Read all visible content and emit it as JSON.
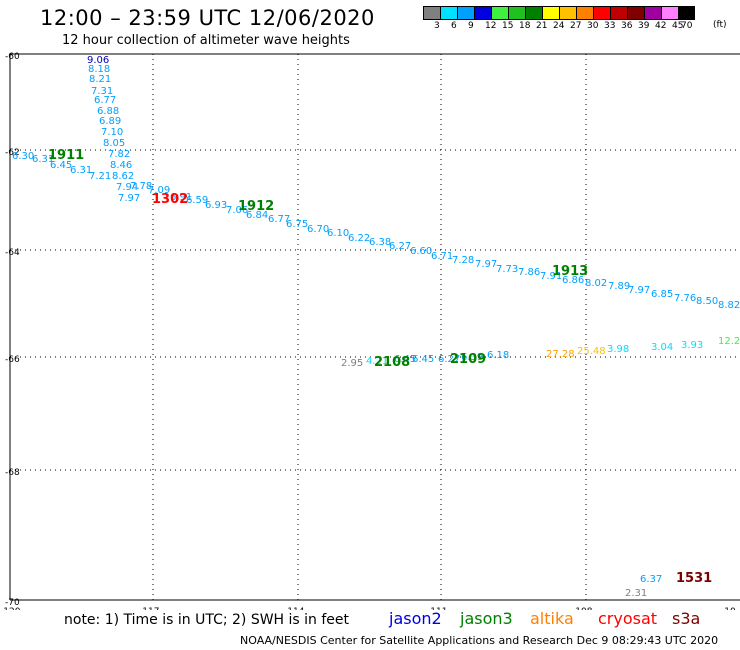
{
  "header": {
    "title": "12:00 – 23:59 UTC 12/06/2020",
    "subtitle": "12 hour collection of altimeter wave heights"
  },
  "colorbar": {
    "colors": [
      "#808080",
      "#00e0ff",
      "#00a0ff",
      "#0000e0",
      "#40f040",
      "#20c020",
      "#008000",
      "#ffff00",
      "#ffc000",
      "#ff8000",
      "#ff0000",
      "#c00000",
      "#800000",
      "#a000a0",
      "#ff80ff",
      "#000000"
    ],
    "labels": [
      "3",
      "6",
      "9",
      "12",
      "15",
      "18",
      "21",
      "24",
      "27",
      "30",
      "33",
      "36",
      "39",
      "42",
      "45",
      "70"
    ],
    "unit": "(ft)"
  },
  "axes": {
    "lat_labels": [
      "-60",
      "-62",
      "-64",
      "-66",
      "-68",
      "-70"
    ],
    "lon_labels": [
      "-120",
      "-117",
      "-114",
      "-111",
      "-108",
      "-10"
    ]
  },
  "observations": [
    {
      "t": "9.06",
      "c": "#0000c0"
    },
    {
      "t": "8.18",
      "c": "#00a0ff"
    },
    {
      "t": "8.21",
      "c": "#00a0ff"
    },
    {
      "t": "7.31",
      "c": "#00a0ff"
    },
    {
      "t": "6.77",
      "c": "#00a0ff"
    },
    {
      "t": "6.88",
      "c": "#00a0ff"
    },
    {
      "t": "6.89",
      "c": "#00a0ff"
    },
    {
      "t": "7.10",
      "c": "#00a0ff"
    },
    {
      "t": "8.05",
      "c": "#00a0ff"
    },
    {
      "t": "7.82",
      "c": "#00a0ff"
    },
    {
      "t": "8.46",
      "c": "#00a0ff"
    },
    {
      "t": "8.62",
      "c": "#00a0ff"
    },
    {
      "t": "7.21",
      "c": "#00a0ff"
    },
    {
      "t": "7.94",
      "c": "#00a0ff"
    },
    {
      "t": "7.97",
      "c": "#00a0ff"
    },
    {
      "t": "6.30",
      "c": "#00a0ff"
    },
    {
      "t": "6.31",
      "c": "#00a0ff"
    },
    {
      "t": "6.45",
      "c": "#00a0ff"
    },
    {
      "t": "6.31",
      "c": "#00a0ff"
    },
    {
      "t": "7.78",
      "c": "#00a0ff"
    },
    {
      "t": "7.09",
      "c": "#00a0ff"
    },
    {
      "t": "6.91",
      "c": "#00a0ff"
    },
    {
      "t": "6.59",
      "c": "#00a0ff"
    },
    {
      "t": "6.93",
      "c": "#00a0ff"
    },
    {
      "t": "7.06",
      "c": "#00a0ff"
    },
    {
      "t": "6.84",
      "c": "#00a0ff"
    },
    {
      "t": "6.77",
      "c": "#00a0ff"
    },
    {
      "t": "6.75",
      "c": "#00a0ff"
    },
    {
      "t": "6.70",
      "c": "#00a0ff"
    },
    {
      "t": "6.10",
      "c": "#00a0ff"
    },
    {
      "t": "6.22",
      "c": "#00a0ff"
    },
    {
      "t": "6.38",
      "c": "#00a0ff"
    },
    {
      "t": "6.27",
      "c": "#00a0ff"
    },
    {
      "t": "6.60",
      "c": "#00a0ff"
    },
    {
      "t": "6.71",
      "c": "#00a0ff"
    },
    {
      "t": "7.28",
      "c": "#00a0ff"
    },
    {
      "t": "7.97",
      "c": "#00a0ff"
    },
    {
      "t": "7.73",
      "c": "#00a0ff"
    },
    {
      "t": "7.86",
      "c": "#00a0ff"
    },
    {
      "t": "7.91",
      "c": "#00a0ff"
    },
    {
      "t": "6.86",
      "c": "#00a0ff"
    },
    {
      "t": "8.02",
      "c": "#00a0ff"
    },
    {
      "t": "7.89",
      "c": "#00a0ff"
    },
    {
      "t": "7.97",
      "c": "#00a0ff"
    },
    {
      "t": "6.85",
      "c": "#00a0ff"
    },
    {
      "t": "7.76",
      "c": "#00a0ff"
    },
    {
      "t": "8.50",
      "c": "#00a0ff"
    },
    {
      "t": "8.82",
      "c": "#00a0ff"
    },
    {
      "t": "2.95",
      "c": "#808080"
    },
    {
      "t": "4.21",
      "c": "#00e0ff"
    },
    {
      "t": "6.45",
      "c": "#00a0ff"
    },
    {
      "t": "6.45",
      "c": "#00a0ff"
    },
    {
      "t": "6.27",
      "c": "#00a0ff"
    },
    {
      "t": "6.39",
      "c": "#00a0ff"
    },
    {
      "t": "6.18",
      "c": "#00a0ff"
    },
    {
      "t": "27.28",
      "c": "#ffa000"
    },
    {
      "t": "25.48",
      "c": "#ffc000"
    },
    {
      "t": "3.98",
      "c": "#00e0ff"
    },
    {
      "t": "3.04",
      "c": "#00e0ff"
    },
    {
      "t": "3.93",
      "c": "#00e0ff"
    },
    {
      "t": "12.2",
      "c": "#40f040"
    },
    {
      "t": "6.37",
      "c": "#00a0ff"
    },
    {
      "t": "2.31",
      "c": "#808080"
    }
  ],
  "pass_times": [
    {
      "t": "1911",
      "c": "#008000"
    },
    {
      "t": "1302",
      "c": "#ff0000"
    },
    {
      "t": "1912",
      "c": "#008000"
    },
    {
      "t": "1913",
      "c": "#008000"
    },
    {
      "t": "2108",
      "c": "#008000"
    },
    {
      "t": "2109",
      "c": "#008000"
    },
    {
      "t": "1531",
      "c": "#800000"
    }
  ],
  "satellites": [
    {
      "t": "jason2",
      "c": "#0000e0"
    },
    {
      "t": "jason3",
      "c": "#008000"
    },
    {
      "t": "altika",
      "c": "#ff8000"
    },
    {
      "t": "cryosat",
      "c": "#ff0000"
    },
    {
      "t": "s3a",
      "c": "#800000"
    }
  ],
  "note": "note: 1) Time is in UTC; 2) SWH is in feet",
  "footer": "NOAA/NESDIS Center for Satellite Applications and Research   Dec  9 08:29:43 UTC 2020"
}
